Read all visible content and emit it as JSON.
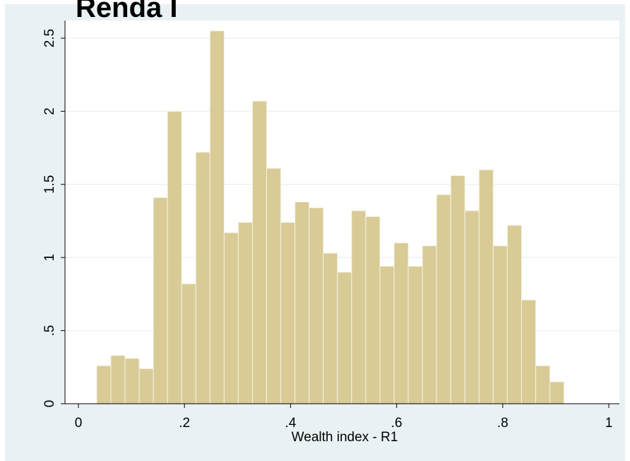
{
  "chart_data": {
    "type": "bar",
    "title": "Renda I",
    "xlabel": "Wealth index - R1",
    "ylabel": "",
    "xlim": [
      0,
      1
    ],
    "ylim": [
      0,
      2.6
    ],
    "xticks": [
      0,
      0.2,
      0.4,
      0.6,
      0.8,
      1
    ],
    "xtick_labels": [
      "0",
      ".2",
      ".4",
      ".6",
      ".8",
      "1"
    ],
    "yticks": [
      0,
      0.5,
      1,
      1.5,
      2,
      2.5
    ],
    "ytick_labels": [
      "0",
      ".5",
      "1",
      "1.5",
      "2",
      "2.5"
    ],
    "grid": true,
    "bin_start": 0.0345,
    "bin_width": 0.0267,
    "values": [
      0.26,
      0.33,
      0.31,
      0.24,
      1.41,
      2.0,
      0.82,
      1.72,
      2.55,
      1.17,
      1.24,
      2.07,
      1.61,
      1.24,
      1.38,
      1.34,
      1.03,
      0.9,
      1.32,
      1.28,
      0.94,
      1.1,
      0.94,
      1.08,
      1.43,
      1.56,
      1.32,
      1.6,
      1.08,
      1.22,
      0.71,
      0.26,
      0.15
    ],
    "colors": {
      "bar_fill": "#d9cb96",
      "bar_stroke": "#f5f2e4",
      "plot_bg": "#ffffff",
      "outer_bg": "#eaf1f4",
      "grid": "#eaf1f4",
      "axis": "#000000"
    }
  }
}
